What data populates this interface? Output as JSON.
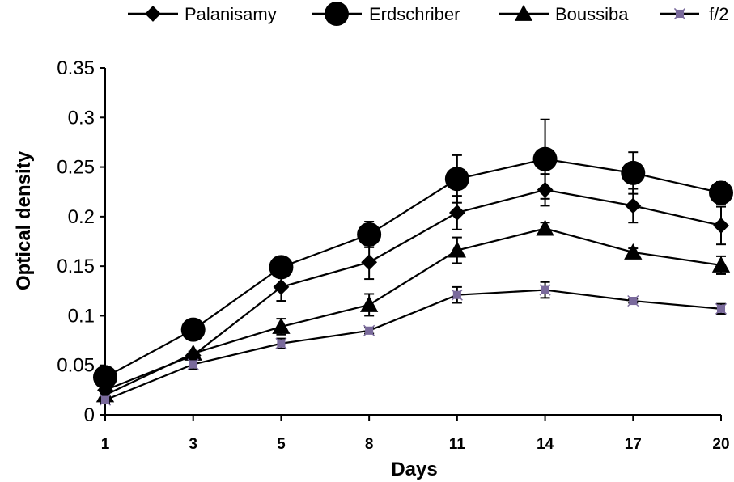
{
  "chart_data": {
    "type": "line",
    "xlabel": "Days",
    "ylabel": "Optical density",
    "categories": [
      "1",
      "3",
      "5",
      "8",
      "11",
      "14",
      "17",
      "20"
    ],
    "ylim": [
      0,
      0.35
    ],
    "yticks": [
      "0",
      "0.05",
      "0.1",
      "0.15",
      "0.2",
      "0.25",
      "0.3",
      "0.35"
    ],
    "legend_position": "top",
    "grid": false,
    "series": [
      {
        "name": "Palanisamy",
        "marker": "diamond",
        "color": "#000000",
        "values": [
          0.025,
          0.06,
          0.129,
          0.154,
          0.204,
          0.227,
          0.211,
          0.191
        ],
        "errors": [
          0.003,
          0.003,
          0.014,
          0.017,
          0.017,
          0.016,
          0.017,
          0.019
        ]
      },
      {
        "name": "Erdschriber",
        "marker": "circle",
        "color": "#000000",
        "values": [
          0.038,
          0.086,
          0.149,
          0.182,
          0.238,
          0.258,
          0.244,
          0.224
        ],
        "errors": [
          0.002,
          0.002,
          0.003,
          0.013,
          0.024,
          0.04,
          0.021,
          0.011
        ]
      },
      {
        "name": "Boussiba",
        "marker": "triangle",
        "color": "#000000",
        "values": [
          0.02,
          0.062,
          0.089,
          0.111,
          0.166,
          0.188,
          0.164,
          0.151
        ],
        "errors": [
          0.002,
          0.002,
          0.008,
          0.011,
          0.013,
          0.006,
          0.004,
          0.009
        ]
      },
      {
        "name": "f/2",
        "marker": "star",
        "color": "#000000",
        "marker_color": "#7a6a9c",
        "values": [
          0.015,
          0.051,
          0.072,
          0.085,
          0.121,
          0.126,
          0.115,
          0.107
        ],
        "errors": [
          0.003,
          0.005,
          0.005,
          0.003,
          0.008,
          0.008,
          0.002,
          0.005
        ]
      }
    ]
  }
}
